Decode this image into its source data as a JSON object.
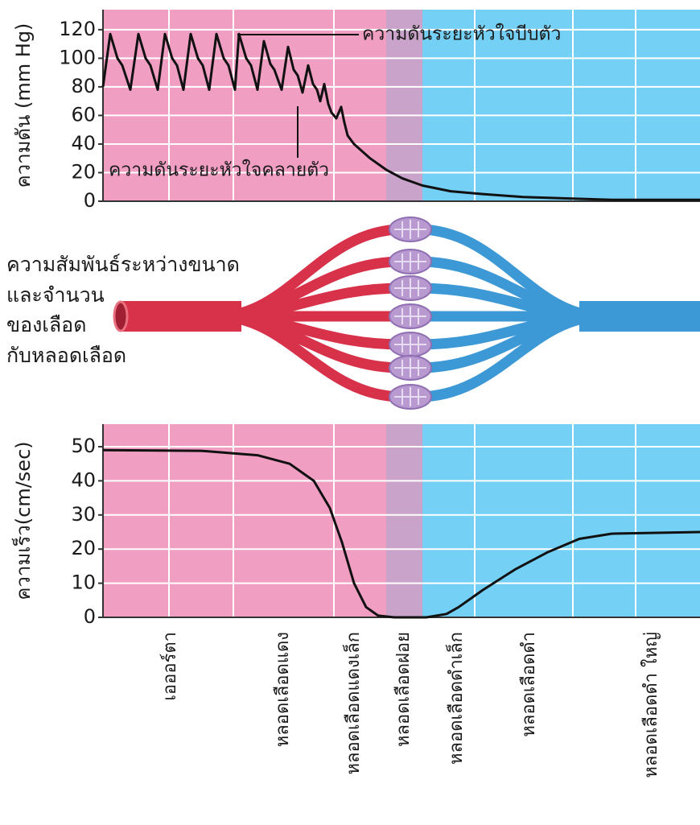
{
  "chart_data": [
    {
      "type": "line",
      "ylabel": "ความดัน (mm Hg)",
      "annotations": [
        {
          "text": "ความดันระยะหัวใจบีบตัว"
        },
        {
          "text": "ความดันระยะหัวใจคลายตัว"
        }
      ],
      "x": [
        0,
        9,
        18,
        24,
        34,
        44,
        53,
        59,
        68,
        77,
        86,
        92,
        100,
        109,
        118,
        124,
        132,
        141,
        150,
        156,
        164,
        169,
        178,
        184,
        192,
        200,
        208,
        213,
        222,
        230,
        237,
        242,
        248,
        255,
        261,
        266,
        270,
        275,
        280,
        284,
        290,
        296,
        300,
        304,
        312,
        332,
        352,
        372,
        397,
        432,
        472,
        522,
        572,
        632,
        742
      ],
      "series": [
        {
          "color": "#111111",
          "values": [
            80,
            117,
            100,
            95,
            78,
            117,
            100,
            95,
            78,
            117,
            100,
            95,
            78,
            117,
            100,
            95,
            78,
            117,
            100,
            95,
            78,
            117,
            100,
            95,
            78,
            112,
            96,
            92,
            78,
            108,
            92,
            88,
            76,
            95,
            82,
            78,
            70,
            82,
            68,
            62,
            58,
            66,
            55,
            46,
            40,
            30,
            22,
            16,
            11,
            7,
            5,
            3,
            2,
            1,
            1
          ]
        }
      ],
      "xlim": [
        0,
        742
      ],
      "ylim": [
        0,
        134
      ],
      "yticks": [
        0,
        20,
        40,
        60,
        80,
        100,
        120
      ],
      "grid": true
    },
    {
      "type": "line",
      "ylabel": "ความเร็ว(cm/sec)",
      "categories": [
        "เอออร์ตา",
        "หลอดเลือดแดง",
        "หลอดเลือดแดงเล็ก",
        "หลอดเลือดฝอย",
        "หลอดเลือดดำเล็ก",
        "หลอดเลือดดำ",
        "หลอดเลือดดำ ใหญ่"
      ],
      "x": [
        0,
        122,
        192,
        232,
        262,
        282,
        297,
        312,
        327,
        342,
        362,
        402,
        427,
        442,
        472,
        512,
        552,
        592,
        632,
        742
      ],
      "series": [
        {
          "color": "#111111",
          "values": [
            49,
            48.8,
            47.5,
            45,
            40,
            32,
            22,
            10,
            3,
            0.5,
            0,
            0,
            1,
            3,
            8,
            14,
            19,
            23,
            24.5,
            25
          ]
        }
      ],
      "xlim": [
        0,
        742
      ],
      "ylim": [
        0,
        56.6
      ],
      "yticks": [
        0,
        10,
        20,
        30,
        40,
        50
      ],
      "grid": true
    }
  ],
  "diagram": {
    "label_lines": [
      "ความสัมพันธ์ระหว่างขนาด",
      "และจำนวน",
      "ของเลือด",
      "กับหลอดเลือด"
    ]
  }
}
